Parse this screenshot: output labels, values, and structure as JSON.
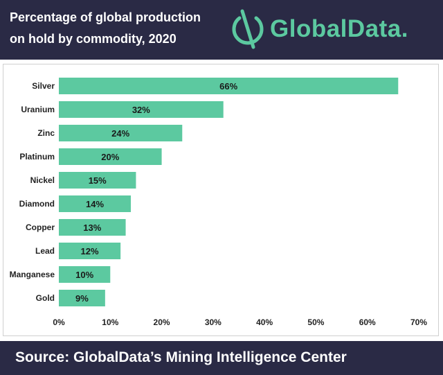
{
  "header": {
    "title_line1": "Percentage of global production",
    "title_line2": "on hold by commodity, 2020",
    "logo_text": "GlobalData."
  },
  "footer": {
    "source": "Source: GlobalData’s Mining Intelligence Center"
  },
  "colors": {
    "header_bg": "#2a2a45",
    "bar": "#5cc9a0",
    "logo": "#5cc9a0"
  },
  "chart_data": {
    "type": "bar",
    "orientation": "horizontal",
    "title": "Percentage of global production on hold by commodity, 2020",
    "categories": [
      "Silver",
      "Uranium",
      "Zinc",
      "Platinum",
      "Nickel",
      "Diamond",
      "Copper",
      "Lead",
      "Manganese",
      "Gold"
    ],
    "values": [
      66,
      32,
      24,
      20,
      15,
      14,
      13,
      12,
      10,
      9
    ],
    "data_labels": [
      "66%",
      "32%",
      "24%",
      "20%",
      "15%",
      "14%",
      "13%",
      "12%",
      "10%",
      "9%"
    ],
    "x_ticks": [
      "0%",
      "10%",
      "20%",
      "30%",
      "40%",
      "50%",
      "60%",
      "70%"
    ],
    "xlim": [
      0,
      70
    ],
    "xlabel": "",
    "ylabel": "",
    "grid": false,
    "legend": "none"
  }
}
